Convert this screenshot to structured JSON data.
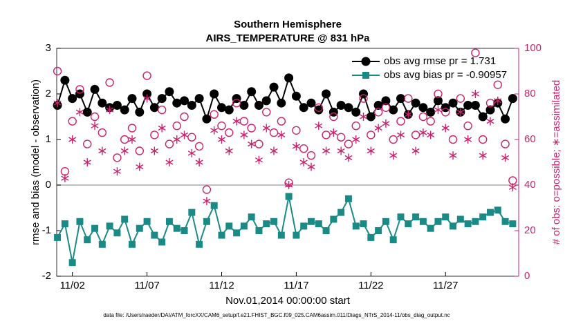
{
  "chart_data": {
    "type": "line",
    "title": "Southern Hemisphere",
    "subtitle": "AIRS_TEMPERATURE @ 831 hPa",
    "xlabel": "Nov.01,2014 00:00:00 start",
    "ylabel": "rmse and bias (model - observation)",
    "y2label": "# of obs: o=possible; ∗=assimilated",
    "footnote": "data file: /Users/raeder/DAI/ATM_forcXX/CAM6_setup/f.e21.FHIST_BGC.f09_025.CAM6assim.011/Diags_NTrS_2014-11/obs_diag_output.nc",
    "legend": "northeast",
    "xlim": [
      -0.05,
      30.9
    ],
    "xticks": [
      {
        "value": 1,
        "label": "11/02"
      },
      {
        "value": 6,
        "label": "11/07"
      },
      {
        "value": 11,
        "label": "11/12"
      },
      {
        "value": 16,
        "label": "11/17"
      },
      {
        "value": 21,
        "label": "11/22"
      },
      {
        "value": 26,
        "label": "11/27"
      }
    ],
    "ylim": [
      -2,
      3
    ],
    "yticks": [
      -2,
      -1,
      0,
      1,
      2,
      3
    ],
    "y2lim": [
      0,
      100
    ],
    "y2ticks": [
      0,
      20,
      40,
      60,
      80,
      100
    ],
    "x": [
      0,
      0.5,
      1,
      1.5,
      2,
      2.5,
      3,
      3.5,
      4,
      4.5,
      5,
      5.5,
      6,
      6.5,
      7,
      7.5,
      8,
      8.5,
      9,
      9.5,
      10,
      10.5,
      11,
      11.5,
      12,
      12.5,
      13,
      13.5,
      14,
      14.5,
      15,
      15.5,
      16,
      16.5,
      17,
      17.5,
      18,
      18.5,
      19,
      19.5,
      20,
      20.5,
      21,
      21.5,
      22,
      22.5,
      23,
      23.5,
      24,
      24.5,
      25,
      25.5,
      26,
      26.5,
      27,
      27.5,
      28,
      28.5,
      29,
      29.5,
      30,
      30.5
    ],
    "series": [
      {
        "name": "obs avg rmse pr = 1.731",
        "color": "#000000",
        "marker": "circle",
        "values": [
          1.75,
          2.3,
          1.9,
          2.0,
          1.6,
          2.1,
          1.8,
          1.7,
          1.75,
          1.65,
          1.9,
          1.6,
          2.0,
          1.7,
          1.9,
          2.05,
          1.8,
          1.85,
          1.75,
          1.9,
          1.45,
          2.0,
          1.7,
          1.65,
          1.9,
          1.75,
          2.05,
          1.75,
          1.85,
          2.15,
          1.8,
          2.35,
          1.95,
          1.7,
          1.8,
          1.65,
          2.0,
          1.6,
          1.75,
          1.7,
          1.6,
          2.0,
          1.5,
          1.75,
          1.85,
          1.65,
          1.9,
          1.55,
          1.8,
          1.7,
          1.6,
          1.85,
          1.7,
          1.8,
          1.6,
          1.75,
          1.75,
          1.5,
          1.65,
          1.8,
          1.45,
          1.9
        ]
      },
      {
        "name": "obs avg bias pr = -0.90957",
        "color": "#1a8a87",
        "marker": "square",
        "values": [
          -1.15,
          -0.85,
          -1.7,
          -0.8,
          -1.2,
          -0.95,
          -1.3,
          -0.9,
          -1.05,
          -0.75,
          -1.3,
          -0.95,
          -0.8,
          -1.1,
          -1.25,
          -0.8,
          -0.95,
          -1.0,
          -0.6,
          -1.3,
          -0.8,
          -0.45,
          -1.1,
          -0.9,
          -1.05,
          -0.9,
          -0.7,
          -1.0,
          -0.85,
          -0.8,
          -1.1,
          -0.25,
          -1.1,
          -0.9,
          -0.8,
          -0.85,
          -1.0,
          -0.75,
          -0.6,
          -0.3,
          -0.9,
          -0.85,
          -1.15,
          -1.0,
          -0.8,
          -1.2,
          -0.7,
          -0.85,
          -0.7,
          -0.8,
          -0.95,
          -0.8,
          -0.7,
          -0.9,
          -0.75,
          -0.85,
          -0.8,
          -0.7,
          -0.6,
          -0.55,
          -0.8,
          -0.85
        ]
      },
      {
        "color": "#cc1f6e",
        "marker": "open-circle",
        "axis": "y2",
        "values": [
          90,
          46,
          68,
          82,
          58,
          70,
          63,
          85,
          52,
          60,
          65,
          55,
          88,
          62,
          73,
          58,
          66,
          70,
          61,
          57,
          38,
          71,
          66,
          63,
          76,
          68,
          65,
          58,
          72,
          63,
          68,
          41,
          64,
          56,
          53,
          74,
          62,
          70,
          61,
          58,
          66,
          78,
          62,
          72,
          74,
          60,
          68,
          78,
          62,
          70,
          68,
          80,
          72,
          60,
          78,
          66,
          98,
          60,
          76,
          84,
          58,
          42
        ]
      },
      {
        "color": "#cc1f6e",
        "marker": "asterisk",
        "axis": "y2",
        "values": [
          76,
          43,
          60,
          72,
          50,
          66,
          55,
          73,
          46,
          55,
          60,
          48,
          78,
          55,
          65,
          50,
          60,
          62,
          54,
          50,
          33,
          64,
          60,
          55,
          68,
          62,
          58,
          51,
          65,
          55,
          62,
          40,
          57,
          50,
          48,
          66,
          55,
          63,
          55,
          52,
          60,
          70,
          55,
          65,
          67,
          53,
          62,
          71,
          55,
          63,
          62,
          73,
          65,
          53,
          72,
          60,
          80,
          53,
          68,
          77,
          52,
          39
        ]
      }
    ]
  }
}
